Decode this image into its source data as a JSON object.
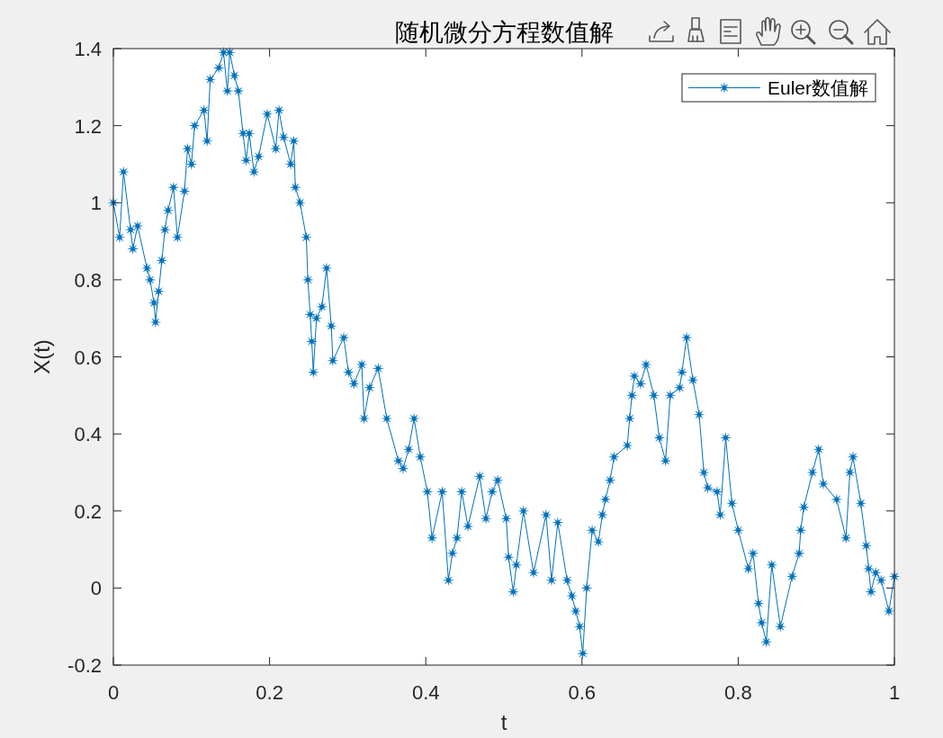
{
  "chart_data": {
    "type": "line",
    "title": "随机微分方程数值解",
    "xlabel": "t",
    "ylabel": "X(t)",
    "x": [
      0,
      0.008,
      0.013,
      0.022,
      0.025,
      0.031,
      0.043,
      0.047,
      0.052,
      0.054,
      0.058,
      0.062,
      0.066,
      0.07,
      0.077,
      0.082,
      0.091,
      0.095,
      0.1,
      0.104,
      0.116,
      0.12,
      0.124,
      0.135,
      0.141,
      0.146,
      0.149,
      0.155,
      0.16,
      0.166,
      0.17,
      0.174,
      0.18,
      0.186,
      0.197,
      0.208,
      0.212,
      0.218,
      0.227,
      0.231,
      0.233,
      0.239,
      0.247,
      0.249,
      0.252,
      0.254,
      0.256,
      0.26,
      0.267,
      0.273,
      0.279,
      0.281,
      0.295,
      0.301,
      0.308,
      0.318,
      0.321,
      0.328,
      0.339,
      0.35,
      0.365,
      0.371,
      0.378,
      0.385,
      0.393,
      0.402,
      0.408,
      0.421,
      0.429,
      0.434,
      0.44,
      0.446,
      0.454,
      0.469,
      0.477,
      0.485,
      0.492,
      0.503,
      0.506,
      0.512,
      0.516,
      0.525,
      0.538,
      0.554,
      0.561,
      0.569,
      0.581,
      0.587,
      0.592,
      0.597,
      0.601,
      0.606,
      0.613,
      0.621,
      0.626,
      0.63,
      0.636,
      0.641,
      0.658,
      0.661,
      0.664,
      0.667,
      0.675,
      0.682,
      0.692,
      0.699,
      0.707,
      0.713,
      0.725,
      0.728,
      0.734,
      0.742,
      0.75,
      0.756,
      0.761,
      0.773,
      0.777,
      0.784,
      0.792,
      0.8,
      0.813,
      0.819,
      0.826,
      0.83,
      0.836,
      0.843,
      0.854,
      0.869,
      0.878,
      0.88,
      0.884,
      0.895,
      0.903,
      0.909,
      0.926,
      0.938,
      0.943,
      0.947,
      0.957,
      0.964,
      0.967,
      0.97,
      0.976,
      0.983,
      0.993,
      1
    ],
    "series": [
      {
        "name": "Euler数值解",
        "color": "#0072bd",
        "values": [
          1.0,
          0.91,
          1.08,
          0.93,
          0.88,
          0.94,
          0.83,
          0.8,
          0.74,
          0.69,
          0.77,
          0.85,
          0.93,
          0.98,
          1.04,
          0.91,
          1.03,
          1.14,
          1.1,
          1.2,
          1.24,
          1.16,
          1.32,
          1.35,
          1.39,
          1.29,
          1.39,
          1.33,
          1.29,
          1.18,
          1.11,
          1.18,
          1.08,
          1.12,
          1.23,
          1.14,
          1.24,
          1.17,
          1.1,
          1.16,
          1.04,
          1.0,
          0.91,
          0.8,
          0.71,
          0.64,
          0.56,
          0.7,
          0.73,
          0.83,
          0.68,
          0.59,
          0.65,
          0.56,
          0.53,
          0.58,
          0.44,
          0.52,
          0.57,
          0.44,
          0.33,
          0.31,
          0.36,
          0.44,
          0.34,
          0.25,
          0.13,
          0.25,
          0.02,
          0.09,
          0.13,
          0.25,
          0.16,
          0.29,
          0.18,
          0.25,
          0.28,
          0.18,
          0.08,
          -0.01,
          0.06,
          0.2,
          0.04,
          0.19,
          0.02,
          0.17,
          0.02,
          -0.02,
          -0.06,
          -0.1,
          -0.17,
          0.0,
          0.15,
          0.12,
          0.19,
          0.23,
          0.28,
          0.34,
          0.37,
          0.44,
          0.5,
          0.55,
          0.53,
          0.58,
          0.5,
          0.39,
          0.33,
          0.5,
          0.52,
          0.56,
          0.65,
          0.54,
          0.45,
          0.3,
          0.26,
          0.25,
          0.19,
          0.39,
          0.22,
          0.15,
          0.05,
          0.09,
          -0.04,
          -0.09,
          -0.14,
          0.06,
          -0.1,
          0.03,
          0.09,
          0.15,
          0.21,
          0.3,
          0.36,
          0.27,
          0.23,
          0.13,
          0.3,
          0.34,
          0.22,
          0.11,
          0.05,
          -0.01,
          0.04,
          0.02,
          -0.06,
          0.03
        ]
      }
    ],
    "xlim": [
      0,
      1
    ],
    "ylim": [
      -0.2,
      1.4
    ],
    "xticks": [
      0,
      0.2,
      0.4,
      0.6,
      0.8,
      1
    ],
    "yticks": [
      -0.2,
      0,
      0.2,
      0.4,
      0.6,
      0.8,
      1,
      1.2,
      1.4
    ],
    "legend": "top right",
    "marker": "star",
    "line_style": "solid"
  }
}
